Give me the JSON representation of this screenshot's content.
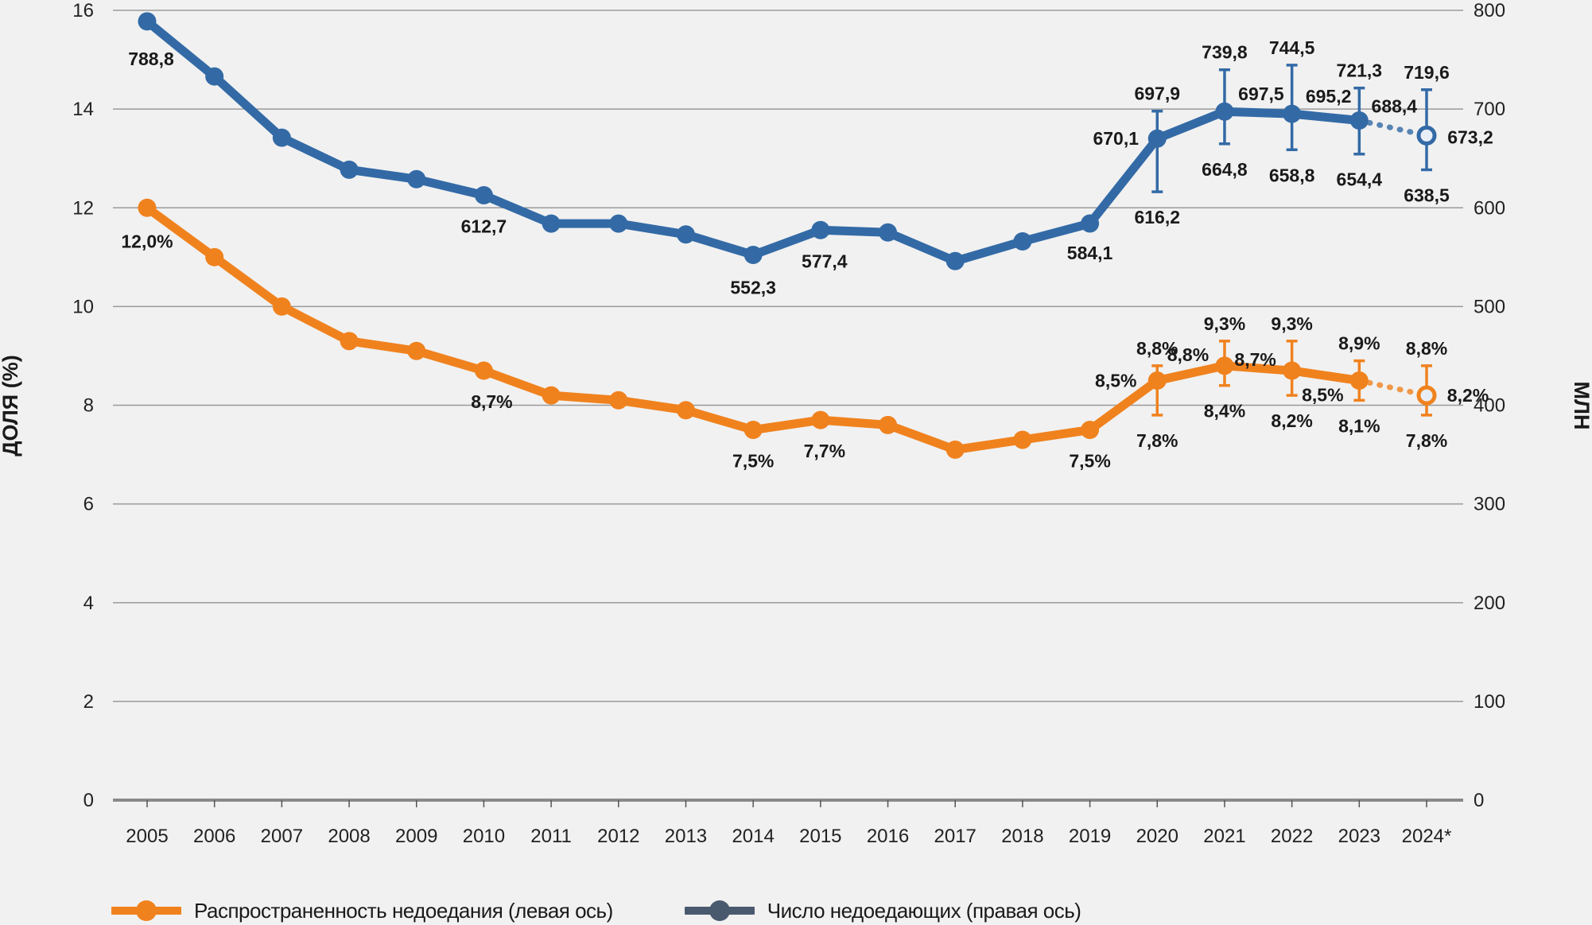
{
  "chart_data": {
    "type": "line",
    "title": "",
    "categories": [
      "2005",
      "2006",
      "2007",
      "2008",
      "2009",
      "2010",
      "2011",
      "2012",
      "2013",
      "2014",
      "2015",
      "2016",
      "2017",
      "2018",
      "2019",
      "2020",
      "2021",
      "2022",
      "2023",
      "2024*"
    ],
    "left_axis": {
      "label": "ДОЛЯ (%)",
      "ylim": [
        0,
        16
      ],
      "ticks": [
        "0",
        "2",
        "4",
        "6",
        "8",
        "10",
        "12",
        "14",
        "16"
      ]
    },
    "right_axis": {
      "label": "МЛН",
      "ylim": [
        0,
        800
      ],
      "ticks": [
        "0",
        "100",
        "200",
        "300",
        "400",
        "500",
        "600",
        "700",
        "800"
      ]
    },
    "grid": true,
    "legend_position": "bottom-left",
    "series": [
      {
        "name": "Распространенность недоедания (левая ось)",
        "axis": "left",
        "color": "#f0821e",
        "values": [
          12.0,
          11.0,
          10.0,
          9.3,
          9.1,
          8.7,
          8.2,
          8.1,
          7.9,
          7.5,
          7.7,
          7.6,
          7.1,
          7.3,
          7.5,
          8.5,
          8.8,
          8.7,
          8.5,
          8.2
        ],
        "labels": [
          "12,0%",
          "",
          "",
          "",
          "",
          "8,7%",
          "",
          "",
          "",
          "7,5%",
          "7,7%",
          "",
          "",
          "",
          "7,5%",
          "8,5%",
          "8,8%",
          "8,7%",
          "8,5%",
          "8,2%"
        ],
        "error_low": [
          null,
          null,
          null,
          null,
          null,
          null,
          null,
          null,
          null,
          null,
          null,
          null,
          null,
          null,
          null,
          7.8,
          8.4,
          8.2,
          8.1,
          7.8
        ],
        "error_high": [
          null,
          null,
          null,
          null,
          null,
          null,
          null,
          null,
          null,
          null,
          null,
          null,
          null,
          null,
          null,
          8.8,
          9.3,
          9.3,
          8.9,
          8.8
        ],
        "error_low_labels": [
          "",
          "",
          "",
          "",
          "",
          "",
          "",
          "",
          "",
          "",
          "",
          "",
          "",
          "",
          "",
          "7,8%",
          "8,4%",
          "8,2%",
          "8,1%",
          "7,8%"
        ],
        "error_high_labels": [
          "",
          "",
          "",
          "",
          "",
          "",
          "",
          "",
          "",
          "",
          "",
          "",
          "",
          "",
          "",
          "8,8%",
          "9,3%",
          "9,3%",
          "8,9%",
          "8,8%"
        ],
        "projected_from_index": 18
      },
      {
        "name": "Число недоедающих (правая ось)",
        "axis": "right",
        "color": "#336aa6",
        "legend_color": "#4a5a6e",
        "values": [
          788.8,
          733,
          671,
          638.6,
          629,
          612.7,
          584,
          584,
          573,
          552.3,
          577.4,
          575,
          546,
          566,
          584.1,
          670.1,
          697.5,
          695.2,
          688.4,
          673.2
        ],
        "labels": [
          "788,8",
          "",
          "",
          "",
          "",
          "612,7",
          "",
          "",
          "",
          "552,3",
          "577,4",
          "",
          "",
          "",
          "584,1",
          "670,1",
          "697,5",
          "695,2",
          "688,4",
          "673,2"
        ],
        "error_low": [
          null,
          null,
          null,
          null,
          null,
          null,
          null,
          null,
          null,
          null,
          null,
          null,
          null,
          null,
          null,
          616.2,
          664.8,
          658.8,
          654.4,
          638.5
        ],
        "error_high": [
          null,
          null,
          null,
          null,
          null,
          null,
          null,
          null,
          null,
          null,
          null,
          null,
          null,
          null,
          null,
          697.9,
          739.8,
          744.5,
          721.3,
          719.6
        ],
        "error_low_labels": [
          "",
          "",
          "",
          "",
          "",
          "",
          "",
          "",
          "",
          "",
          "",
          "",
          "",
          "",
          "",
          "616,2",
          "664,8",
          "658,8",
          "654,4",
          "638,5"
        ],
        "error_high_labels": [
          "",
          "",
          "",
          "",
          "",
          "",
          "",
          "",
          "",
          "",
          "",
          "",
          "",
          "",
          "",
          "697,9",
          "739,8",
          "744,5",
          "721,3",
          "719,6"
        ],
        "projected_from_index": 18
      }
    ]
  },
  "legend": {
    "items": [
      {
        "label": "Распространенность недоедания (левая ось)",
        "color": "#f0821e"
      },
      {
        "label": "Число недоедающих (правая ось)",
        "color": "#4a5a6e"
      }
    ]
  }
}
